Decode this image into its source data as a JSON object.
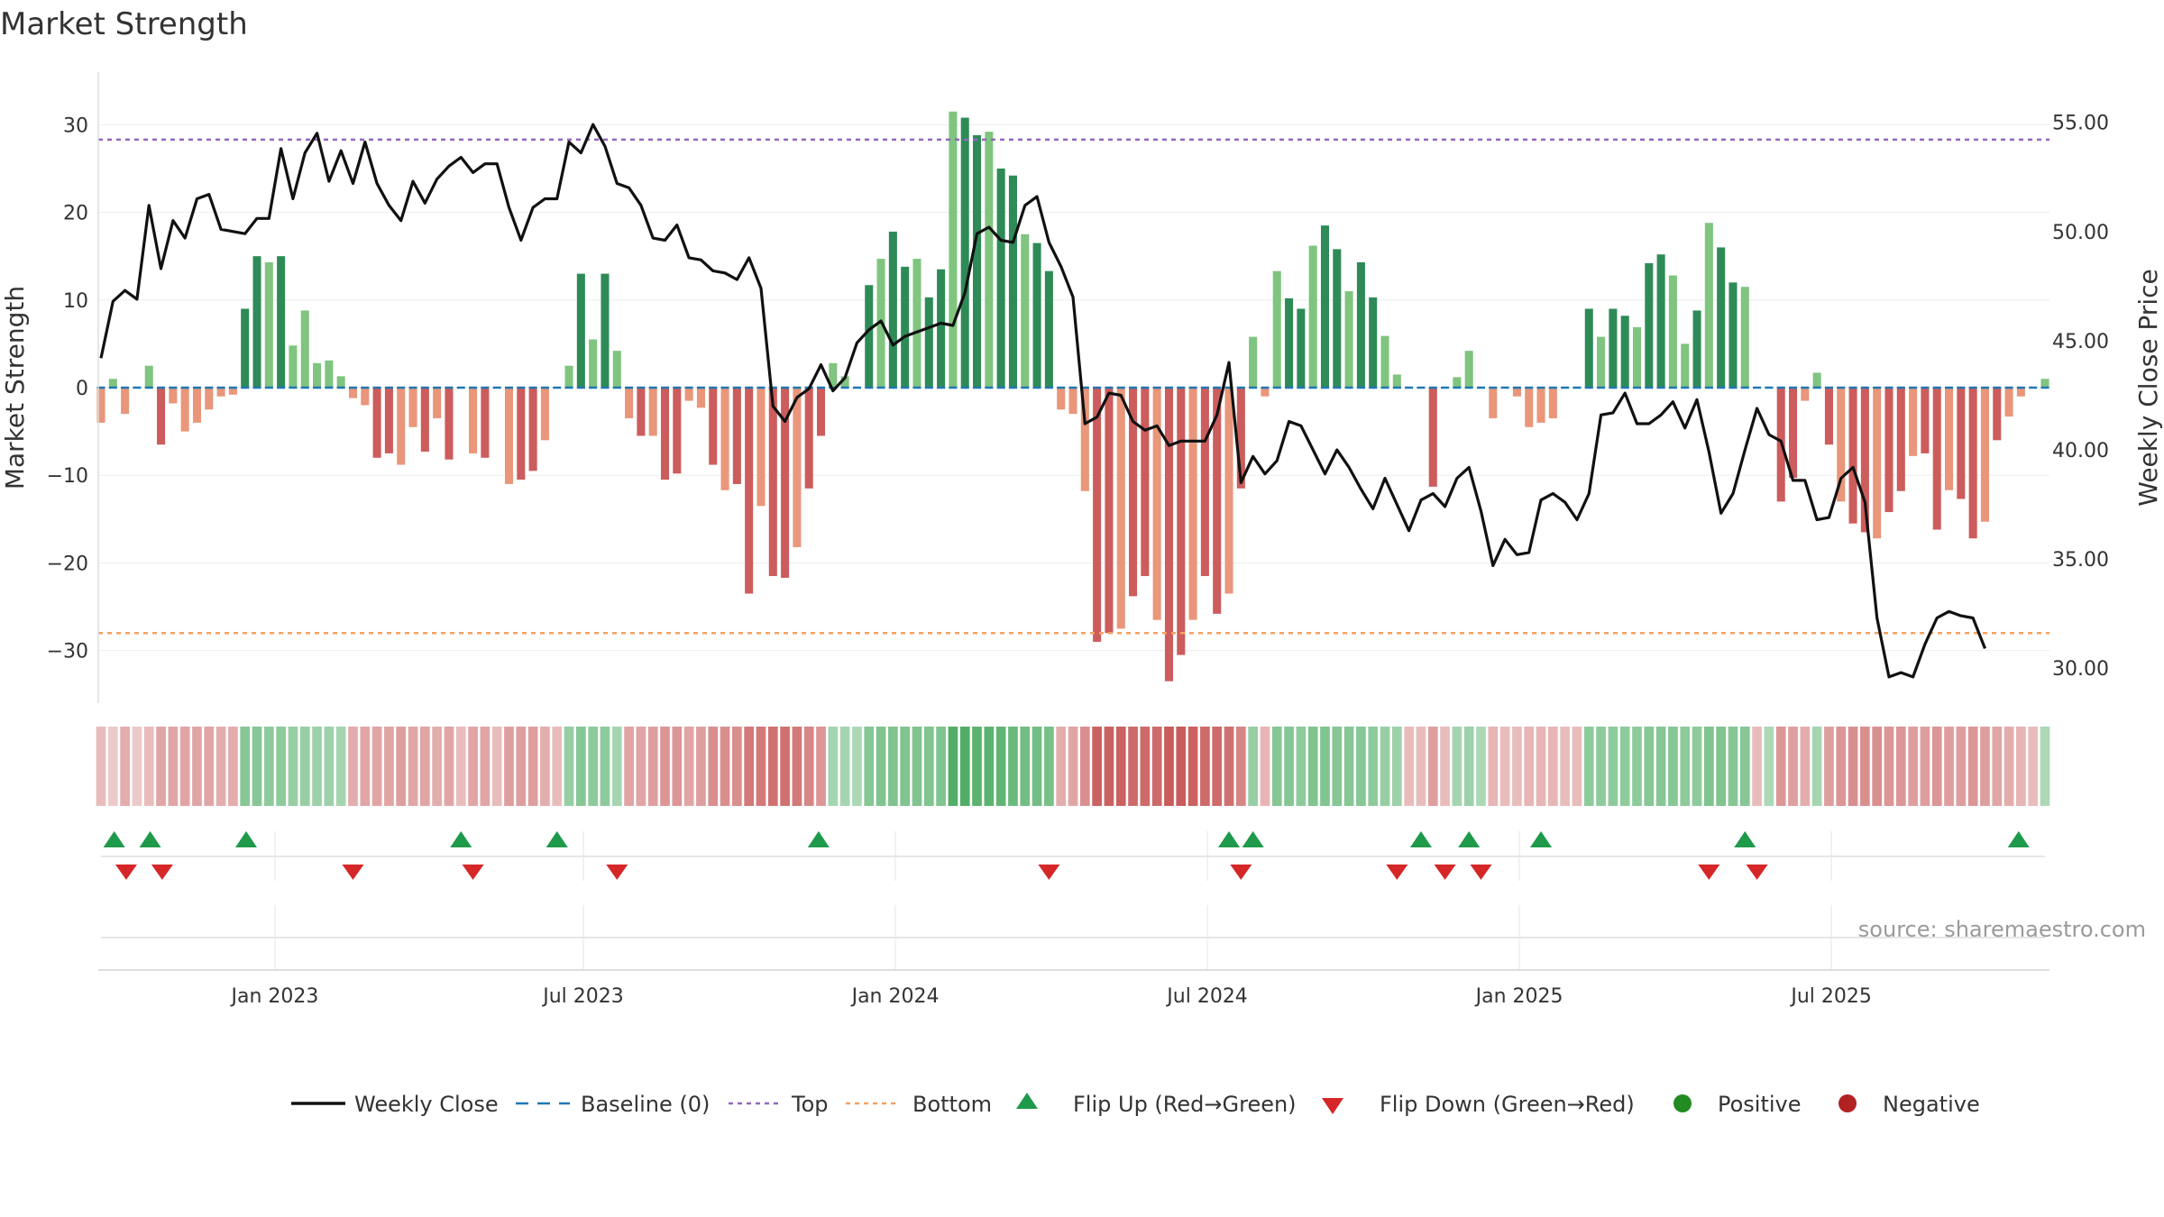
{
  "chart_data": {
    "type": "bar",
    "title": "Market Strength",
    "y_left_label": "Market Strength",
    "y_right_label": "Weekly Close Price",
    "y_left_range": [
      -36,
      36
    ],
    "y_right_range": [
      28.4,
      57.3
    ],
    "y_left_ticks": [
      -30,
      -20,
      -10,
      0,
      10,
      20,
      30
    ],
    "y_left_tick_labels": [
      "−30",
      "−20",
      "−10",
      "0",
      "10",
      "20",
      "30"
    ],
    "y_right_ticks": [
      30,
      35,
      40,
      45,
      50,
      55
    ],
    "y_right_tick_labels": [
      "30.00",
      "35.00",
      "40.00",
      "45.00",
      "50.00",
      "55.00"
    ],
    "x_tick_labels": [
      "Jan 2023",
      "Jul 2023",
      "Jan 2024",
      "Jul 2024",
      "Jan 2025",
      "Jul 2025"
    ],
    "x_tick_positions_week": [
      14.5,
      40.2,
      66.2,
      92.2,
      118.2,
      144.2
    ],
    "top_line": 28.3,
    "bottom_line": -28.0,
    "strength": [
      -4,
      1,
      -3,
      0,
      2.5,
      -6.5,
      -1.8,
      -5,
      -4,
      -2.5,
      -1,
      -0.8,
      9,
      15,
      14.3,
      15,
      4.8,
      8.8,
      2.8,
      3.1,
      1.3,
      -1.2,
      -2,
      -8,
      -7.5,
      -8.8,
      -4.5,
      -7.3,
      -3.5,
      -8.2,
      0,
      -7.5,
      -8,
      0,
      -11,
      -10.5,
      -9.5,
      -6,
      0,
      2.5,
      13,
      5.5,
      13,
      4.2,
      -3.5,
      -5.5,
      -5.5,
      -10.5,
      -9.8,
      -1.5,
      -2.3,
      -8.8,
      -11.7,
      -11,
      -23.5,
      -13.5,
      -21.5,
      -21.7,
      -18.2,
      -11.5,
      -5.5,
      2.8,
      1.3,
      0,
      11.7,
      14.7,
      17.8,
      13.8,
      14.7,
      10.3,
      13.5,
      31.5,
      30.8,
      28.8,
      29.2,
      25,
      24.2,
      17.5,
      16.5,
      13.3,
      -2.5,
      -3,
      -11.8,
      -29,
      -28,
      -27.5,
      -23.8,
      -21.5,
      -26.5,
      -33.5,
      -30.5,
      -26.5,
      -21.5,
      -25.8,
      -23.5,
      -11.5,
      5.8,
      -1,
      13.3,
      10.2,
      9,
      16.2,
      18.5,
      15.8,
      11,
      14.3,
      10.3,
      5.9,
      1.5,
      0,
      0,
      -11.3,
      0,
      1.2,
      4.2,
      0,
      -3.5,
      0,
      -1,
      -4.5,
      -4,
      -3.5,
      0,
      0,
      9,
      5.8,
      9,
      8.2,
      6.9,
      14.2,
      15.2,
      12.8,
      5,
      8.8,
      18.8,
      16,
      12,
      11.5,
      0,
      0,
      -13,
      -10.3,
      -1.5,
      1.7,
      -6.5,
      -13,
      -15.5,
      -16.5,
      -17.2,
      -14.2,
      -11.8,
      -7.8,
      -7.5,
      -16.2,
      -11.7,
      -12.7,
      -17.2,
      -15.3,
      -6,
      -3.3,
      -1,
      0,
      1
    ],
    "weekly_close": [
      44.2,
      46.8,
      47.3,
      46.9,
      51.2,
      48.3,
      50.5,
      49.7,
      51.5,
      51.7,
      50.1,
      50,
      49.9,
      50.6,
      50.6,
      53.8,
      51.5,
      53.6,
      54.5,
      52.3,
      53.7,
      52.2,
      54.1,
      52.2,
      51.2,
      50.5,
      52.3,
      51.3,
      52.4,
      53,
      53.4,
      52.7,
      53.1,
      53.1,
      51.1,
      49.6,
      51.1,
      51.5,
      51.5,
      54.1,
      53.6,
      54.9,
      53.9,
      52.2,
      52,
      51.2,
      49.7,
      49.6,
      50.3,
      48.8,
      48.7,
      48.2,
      48.1,
      47.8,
      48.8,
      47.4,
      42,
      41.3,
      42.4,
      42.8,
      43.9,
      42.7,
      43.3,
      44.9,
      45.5,
      45.9,
      44.8,
      45.2,
      45.4,
      45.6,
      45.8,
      45.7,
      47.2,
      49.9,
      50.2,
      49.6,
      49.5,
      51.2,
      51.6,
      49.5,
      48.4,
      47,
      41.2,
      41.5,
      42.6,
      42.5,
      41.3,
      40.9,
      41.1,
      40.2,
      40.4,
      40.4,
      40.4,
      41.6,
      44,
      38.5,
      39.7,
      38.9,
      39.5,
      41.3,
      41.1,
      40,
      38.9,
      40,
      39.2,
      38.2,
      37.3,
      38.7,
      37.5,
      36.3,
      37.7,
      38,
      37.4,
      38.7,
      39.2,
      37.2,
      34.7,
      35.9,
      35.2,
      35.3,
      37.7,
      38,
      37.6,
      36.8,
      38,
      41.6,
      41.7,
      42.6,
      41.2,
      41.2,
      41.6,
      42.2,
      41,
      42.3,
      39.9,
      37.1,
      38,
      40,
      41.9,
      40.7,
      40.4,
      38.6,
      38.6,
      36.8,
      36.9,
      38.7,
      39.2,
      37.6,
      32.3,
      29.6,
      29.8,
      29.6,
      31.1,
      32.3,
      32.6,
      32.4,
      32.3,
      30.9
    ],
    "heat_intensity": [
      -0.3,
      -0.2,
      -0.4,
      -0.2,
      -0.3,
      -0.45,
      -0.45,
      -0.45,
      -0.45,
      -0.45,
      -0.4,
      -0.4,
      0.55,
      0.55,
      0.5,
      0.5,
      0.45,
      0.45,
      0.4,
      0.4,
      0.35,
      -0.4,
      -0.45,
      -0.45,
      -0.45,
      -0.5,
      -0.45,
      -0.45,
      -0.4,
      -0.45,
      -0.3,
      -0.45,
      -0.45,
      -0.3,
      -0.5,
      -0.5,
      -0.5,
      -0.4,
      -0.3,
      0.45,
      0.55,
      0.5,
      0.5,
      0.35,
      -0.45,
      -0.45,
      -0.5,
      -0.55,
      -0.55,
      -0.45,
      -0.5,
      -0.6,
      -0.6,
      -0.6,
      -0.75,
      -0.75,
      -0.8,
      -0.8,
      -0.75,
      -0.65,
      -0.55,
      0.35,
      0.35,
      0.3,
      0.55,
      0.6,
      0.6,
      0.6,
      0.6,
      0.6,
      0.6,
      0.9,
      0.9,
      0.85,
      0.85,
      0.8,
      0.75,
      0.7,
      0.7,
      0.65,
      -0.4,
      -0.45,
      -0.6,
      -0.9,
      -0.9,
      -0.9,
      -0.85,
      -0.85,
      -0.85,
      -0.95,
      -0.95,
      -0.9,
      -0.85,
      -0.85,
      -0.8,
      -0.65,
      0.45,
      -0.35,
      0.55,
      0.55,
      0.5,
      0.6,
      0.6,
      0.55,
      0.55,
      0.55,
      0.5,
      0.45,
      0.4,
      -0.3,
      -0.3,
      -0.5,
      -0.3,
      0.35,
      0.4,
      0.3,
      -0.35,
      -0.3,
      -0.3,
      -0.35,
      -0.35,
      -0.35,
      -0.3,
      -0.3,
      0.5,
      0.5,
      0.5,
      0.5,
      0.5,
      0.55,
      0.55,
      0.55,
      0.5,
      0.5,
      0.6,
      0.6,
      0.55,
      0.55,
      -0.3,
      0.3,
      -0.55,
      -0.5,
      -0.4,
      0.35,
      -0.5,
      -0.55,
      -0.6,
      -0.6,
      -0.6,
      -0.55,
      -0.55,
      -0.5,
      -0.5,
      -0.55,
      -0.5,
      -0.5,
      -0.55,
      -0.5,
      -0.45,
      -0.4,
      -0.35,
      -0.3,
      0.3
    ],
    "flip_up_weeks": [
      1.1,
      4.1,
      12.1,
      30,
      38,
      59.8,
      94,
      96,
      110,
      114,
      120,
      137,
      159.8
    ],
    "flip_down_weeks": [
      2.1,
      5.1,
      21,
      31,
      43,
      79,
      95,
      108,
      112,
      115,
      134,
      138
    ],
    "legend": [
      "Weekly Close",
      "Baseline (0)",
      "Top",
      "Bottom",
      "Flip Up (Red→Green)",
      "Flip Down (Green→Red)",
      "Positive",
      "Negative"
    ],
    "source": "source: sharemaestro.com"
  },
  "colors": {
    "close": "#111111",
    "baseline": "#1f77b4",
    "top": "#9467bd",
    "bottom": "#f4a261",
    "pos_strong": "#2e8b57",
    "pos_light": "#7fc47f",
    "neg_strong": "#cd5c5c",
    "neg_light": "#e9967a",
    "flip_up": "#1e9a4a",
    "flip_down": "#d62728",
    "positive_dot": "#228b22",
    "negative_dot": "#b22222"
  }
}
